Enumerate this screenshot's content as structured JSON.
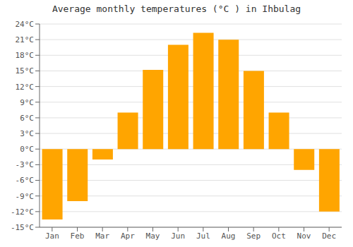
{
  "chart_data": {
    "type": "bar",
    "title": "Average monthly temperatures (°C ) in Ihbulag",
    "categories": [
      "Jan",
      "Feb",
      "Mar",
      "Apr",
      "May",
      "Jun",
      "Jul",
      "Aug",
      "Sep",
      "Oct",
      "Nov",
      "Dec"
    ],
    "values": [
      -13.5,
      -10.0,
      -2.0,
      7.0,
      15.2,
      20.0,
      22.3,
      21.0,
      15.0,
      7.0,
      -4.0,
      -12.0
    ],
    "color": "#FFA500",
    "ylim": [
      -15,
      24
    ],
    "yticks": [
      {
        "value": -15,
        "label": "-15°C"
      },
      {
        "value": -12,
        "label": "-12°C"
      },
      {
        "value": -9,
        "label": "-9°C"
      },
      {
        "value": -6,
        "label": "-6°C"
      },
      {
        "value": -3,
        "label": "-3°C"
      },
      {
        "value": 0,
        "label": "0°C"
      },
      {
        "value": 3,
        "label": "3°C"
      },
      {
        "value": 6,
        "label": "6°C"
      },
      {
        "value": 9,
        "label": "9°C"
      },
      {
        "value": 12,
        "label": "12°C"
      },
      {
        "value": 15,
        "label": "15°C"
      },
      {
        "value": 18,
        "label": "18°C"
      },
      {
        "value": 21,
        "label": "21°C"
      },
      {
        "value": 24,
        "label": "24°C"
      }
    ],
    "grid": true
  }
}
